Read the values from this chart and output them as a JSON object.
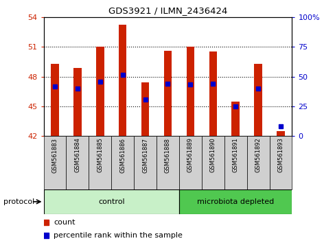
{
  "title": "GDS3921 / ILMN_2436424",
  "samples": [
    "GSM561883",
    "GSM561884",
    "GSM561885",
    "GSM561886",
    "GSM561887",
    "GSM561888",
    "GSM561889",
    "GSM561890",
    "GSM561891",
    "GSM561892",
    "GSM561893"
  ],
  "count_values": [
    49.3,
    48.9,
    51.0,
    53.2,
    47.4,
    50.6,
    51.0,
    50.5,
    45.5,
    49.3,
    42.5
  ],
  "percentile_values": [
    47.0,
    46.8,
    47.5,
    48.2,
    45.7,
    47.3,
    47.2,
    47.3,
    45.0,
    46.8,
    43.0
  ],
  "y_min": 42,
  "y_max": 54,
  "y_ticks": [
    42,
    45,
    48,
    51,
    54
  ],
  "right_y_ticks": [
    0,
    25,
    50,
    75,
    100
  ],
  "right_y_values": [
    42,
    45,
    48,
    51,
    54
  ],
  "bar_color": "#cc2200",
  "percentile_color": "#0000cc",
  "control_samples": 6,
  "control_label": "control",
  "microbiota_label": "microbiota depleted",
  "protocol_label": "protocol",
  "legend_count": "count",
  "legend_percentile": "percentile rank within the sample",
  "control_bg": "#c8f0c8",
  "microbiota_bg": "#50c850",
  "xlabel_bg": "#d0d0d0",
  "bar_width": 0.35
}
